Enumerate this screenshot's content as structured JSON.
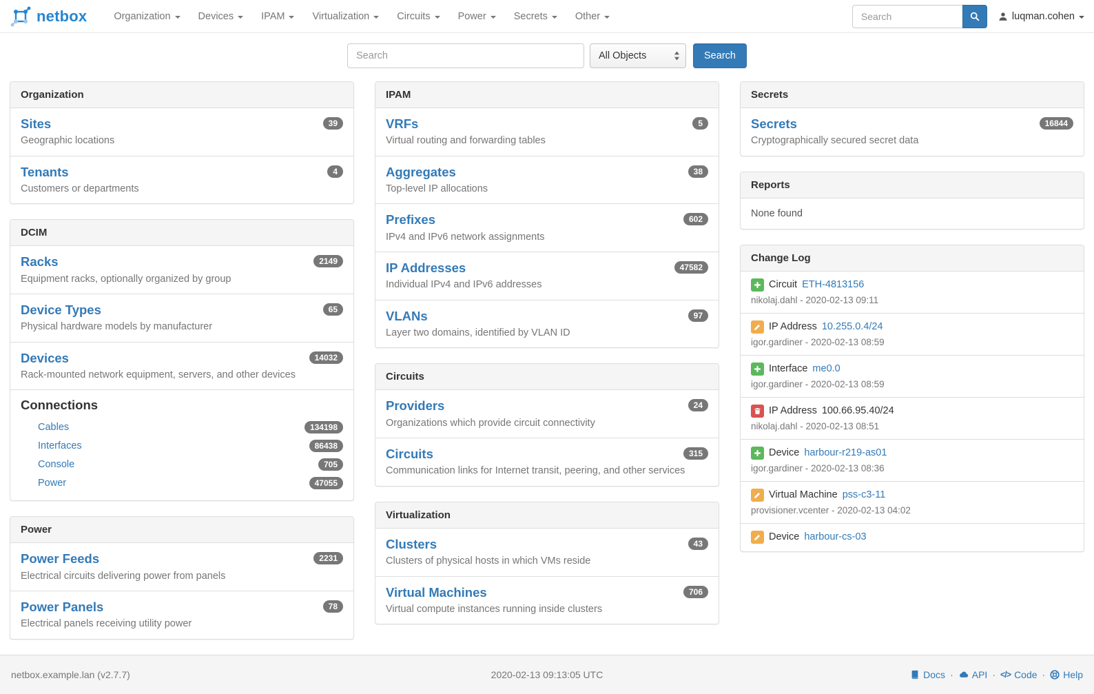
{
  "colors": {
    "accent": "#337ab7",
    "brand_blue": "#2586d2",
    "badge_gray": "#777777",
    "create_green": "#5cb85c",
    "update_orange": "#f0ad4e",
    "delete_red": "#d9534f",
    "panel_border": "#dddddd",
    "panel_header_bg": "#f5f5f5"
  },
  "navbar": {
    "brand": "netbox",
    "menu": [
      "Organization",
      "Devices",
      "IPAM",
      "Virtualization",
      "Circuits",
      "Power",
      "Secrets",
      "Other"
    ],
    "search_placeholder": "Search",
    "username": "luqman.cohen"
  },
  "search_bar": {
    "placeholder": "Search",
    "scope_selected": "All Objects",
    "submit_label": "Search"
  },
  "columns": [
    {
      "panels": [
        {
          "id": "organization",
          "title": "Organization",
          "items": [
            {
              "type": "link",
              "label": "Sites",
              "desc": "Geographic locations",
              "badge": "39"
            },
            {
              "type": "link",
              "label": "Tenants",
              "desc": "Customers or departments",
              "badge": "4"
            }
          ]
        },
        {
          "id": "dcim",
          "title": "DCIM",
          "items": [
            {
              "type": "link",
              "label": "Racks",
              "desc": "Equipment racks, optionally organized by group",
              "badge": "2149"
            },
            {
              "type": "link",
              "label": "Device Types",
              "desc": "Physical hardware models by manufacturer",
              "badge": "65"
            },
            {
              "type": "link",
              "label": "Devices",
              "desc": "Rack-mounted network equipment, servers, and other devices",
              "badge": "14032"
            },
            {
              "type": "group",
              "label": "Connections",
              "links": [
                {
                  "label": "Cables",
                  "badge": "134198"
                },
                {
                  "label": "Interfaces",
                  "badge": "86438"
                },
                {
                  "label": "Console",
                  "badge": "705"
                },
                {
                  "label": "Power",
                  "badge": "47055"
                }
              ]
            }
          ]
        },
        {
          "id": "power",
          "title": "Power",
          "items": [
            {
              "type": "link",
              "label": "Power Feeds",
              "desc": "Electrical circuits delivering power from panels",
              "badge": "2231"
            },
            {
              "type": "link",
              "label": "Power Panels",
              "desc": "Electrical panels receiving utility power",
              "badge": "78"
            }
          ]
        }
      ]
    },
    {
      "panels": [
        {
          "id": "ipam",
          "title": "IPAM",
          "items": [
            {
              "type": "link",
              "label": "VRFs",
              "desc": "Virtual routing and forwarding tables",
              "badge": "5"
            },
            {
              "type": "link",
              "label": "Aggregates",
              "desc": "Top-level IP allocations",
              "badge": "38"
            },
            {
              "type": "link",
              "label": "Prefixes",
              "desc": "IPv4 and IPv6 network assignments",
              "badge": "602"
            },
            {
              "type": "link",
              "label": "IP Addresses",
              "desc": "Individual IPv4 and IPv6 addresses",
              "badge": "47582"
            },
            {
              "type": "link",
              "label": "VLANs",
              "desc": "Layer two domains, identified by VLAN ID",
              "badge": "97"
            }
          ]
        },
        {
          "id": "circuits",
          "title": "Circuits",
          "items": [
            {
              "type": "link",
              "label": "Providers",
              "desc": "Organizations which provide circuit connectivity",
              "badge": "24"
            },
            {
              "type": "link",
              "label": "Circuits",
              "desc": "Communication links for Internet transit, peering, and other services",
              "badge": "315"
            }
          ]
        },
        {
          "id": "virtualization",
          "title": "Virtualization",
          "items": [
            {
              "type": "link",
              "label": "Clusters",
              "desc": "Clusters of physical hosts in which VMs reside",
              "badge": "43"
            },
            {
              "type": "link",
              "label": "Virtual Machines",
              "desc": "Virtual compute instances running inside clusters",
              "badge": "706"
            }
          ]
        }
      ]
    },
    {
      "panels": [
        {
          "id": "secrets",
          "title": "Secrets",
          "items": [
            {
              "type": "link",
              "label": "Secrets",
              "desc": "Cryptographically secured secret data",
              "badge": "16844"
            }
          ]
        },
        {
          "id": "reports",
          "title": "Reports",
          "items": [
            {
              "type": "text",
              "text": "None found"
            }
          ]
        },
        {
          "id": "changelog",
          "title": "Change Log",
          "items": [
            {
              "type": "change",
              "action": "create",
              "object_type": "Circuit",
              "object": "ETH-4813156",
              "link": true,
              "meta": "nikolaj.dahl - 2020-02-13 09:11"
            },
            {
              "type": "change",
              "action": "update",
              "object_type": "IP Address",
              "object": "10.255.0.4/24",
              "link": true,
              "meta": "igor.gardiner - 2020-02-13 08:59"
            },
            {
              "type": "change",
              "action": "create",
              "object_type": "Interface",
              "object": "me0.0",
              "link": true,
              "meta": "igor.gardiner - 2020-02-13 08:59"
            },
            {
              "type": "change",
              "action": "delete",
              "object_type": "IP Address",
              "object": "100.66.95.40/24",
              "link": false,
              "meta": "nikolaj.dahl - 2020-02-13 08:51"
            },
            {
              "type": "change",
              "action": "create",
              "object_type": "Device",
              "object": "harbour-r219-as01",
              "link": true,
              "meta": "igor.gardiner - 2020-02-13 08:36"
            },
            {
              "type": "change",
              "action": "update",
              "object_type": "Virtual Machine",
              "object": "pss-c3-11",
              "link": true,
              "meta": "provisioner.vcenter - 2020-02-13 04:02"
            },
            {
              "type": "change",
              "action": "update",
              "object_type": "Device",
              "object": "harbour-cs-03",
              "link": true
            }
          ]
        }
      ]
    }
  ],
  "footer": {
    "left": "netbox.example.lan (v2.7.7)",
    "center": "2020-02-13 09:13:05 UTC",
    "links": [
      {
        "label": "Docs",
        "icon": "book-icon"
      },
      {
        "label": "API",
        "icon": "cloud-icon"
      },
      {
        "label": "Code",
        "icon": "code-icon"
      },
      {
        "label": "Help",
        "icon": "help-icon"
      }
    ]
  }
}
